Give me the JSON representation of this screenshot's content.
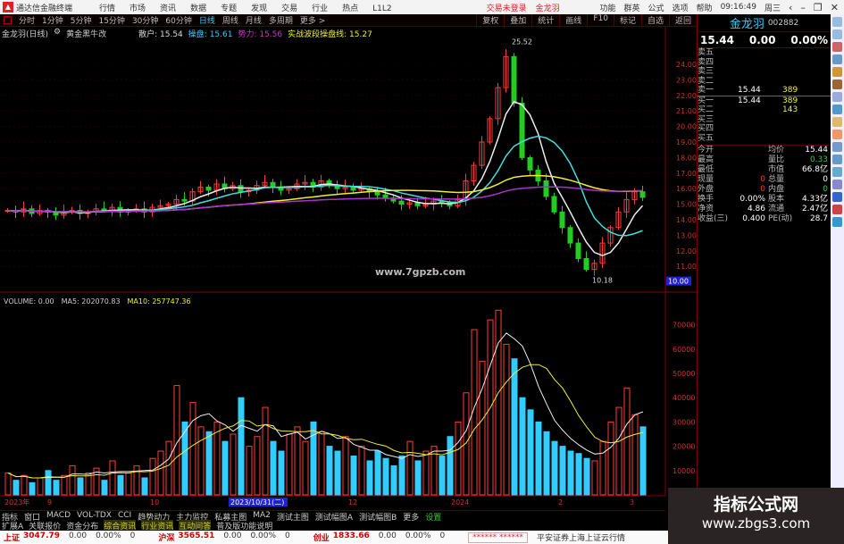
{
  "titlebar": {
    "app_title": "通达信金融终端",
    "menu": [
      "行情",
      "市场",
      "资讯",
      "数据",
      "专题",
      "发现",
      "交易",
      "行业",
      "热点",
      "L1L2"
    ],
    "trade_login": "交易未登录",
    "user": "金龙羽",
    "right": [
      "功能",
      "群英",
      "公式",
      "选项",
      "帮助"
    ],
    "time": "09:16:49",
    "weekday": "周三"
  },
  "periodbar": {
    "items": [
      "分时",
      "1分钟",
      "5分钟",
      "15分钟",
      "30分钟",
      "60分钟",
      "日线",
      "周线",
      "月线",
      "多周期",
      "更多 >"
    ],
    "active": "日线",
    "tools": [
      "复权",
      "叠加",
      "统计",
      "画线",
      "F10",
      "标记",
      "自选",
      "返回"
    ]
  },
  "infoline": {
    "stock": "金龙羽(日线)",
    "indicator": "黄金黑牛改",
    "items": [
      {
        "label": "散户: 15.54",
        "color": "#ddd"
      },
      {
        "label": "操盘: 15.61",
        "color": "#3cf"
      },
      {
        "label": "势力: 15.56",
        "color": "#c3c"
      },
      {
        "label": "实战波段操盘线: 15.27",
        "color": "#ee3"
      }
    ]
  },
  "chart_data": {
    "type": "candlestick",
    "price_axis": {
      "ticks": [
        "24.00",
        "23.00",
        "22.00",
        "21.00",
        "20.00",
        "19.00",
        "18.00",
        "17.00",
        "16.00",
        "15.00",
        "14.00",
        "13.00",
        "12.00",
        "11.00"
      ],
      "current_label": "10.00"
    },
    "volume_axis": {
      "ticks": [
        "70000",
        "60000",
        "50000",
        "40000",
        "30000",
        "20000",
        "10000"
      ]
    },
    "closes": [
      14.6,
      14.5,
      14.7,
      14.4,
      14.6,
      14.5,
      14.3,
      14.5,
      14.6,
      14.4,
      14.5,
      14.7,
      14.6,
      14.8,
      14.5,
      14.6,
      14.7,
      14.5,
      14.8,
      14.9,
      15.0,
      15.3,
      15.2,
      15.8,
      16.1,
      15.9,
      16.3,
      16.0,
      16.2,
      15.8,
      15.9,
      16.2,
      16.4,
      16.1,
      15.9,
      16.0,
      16.3,
      16.4,
      16.1,
      16.5,
      16.2,
      16.0,
      16.1,
      15.9,
      16.0,
      15.8,
      15.6,
      15.4,
      15.2,
      15.0,
      15.1,
      14.9,
      15.0,
      15.2,
      15.1,
      14.9,
      15.3,
      16.5,
      17.5,
      19.0,
      20.5,
      22.5,
      24.5,
      21.5,
      18.0,
      17.2,
      16.5,
      15.5,
      14.5,
      13.5,
      12.5,
      11.5,
      10.8,
      11.2,
      12.5,
      13.5,
      14.5,
      15.3,
      15.8,
      15.44
    ],
    "volumes": [
      9000,
      6000,
      8000,
      5000,
      7000,
      10000,
      6000,
      8000,
      12000,
      7000,
      9000,
      11000,
      6000,
      14000,
      8000,
      9000,
      12000,
      7000,
      15000,
      18000,
      22000,
      45000,
      30000,
      38000,
      28000,
      26000,
      30000,
      22000,
      25000,
      40000,
      20000,
      24000,
      36000,
      22000,
      18000,
      25000,
      28000,
      22000,
      30000,
      26000,
      20000,
      18000,
      24000,
      16000,
      20000,
      14000,
      18000,
      15000,
      12000,
      16000,
      22000,
      14000,
      18000,
      20000,
      16000,
      24000,
      30000,
      42000,
      68000,
      55000,
      72000,
      76000,
      62000,
      56000,
      40000,
      35000,
      30000,
      26000,
      22000,
      20000,
      18000,
      17000,
      15000,
      14000,
      22000,
      30000,
      36000,
      44000,
      33000,
      28000
    ],
    "annotations": {
      "high": "25.52",
      "low": "10.18"
    },
    "volume_legend": {
      "label": "VOLUME: 0.00",
      "ma5": "MA5: 202070.83",
      "ma10": "MA10: 257747.36"
    },
    "x_labels": [
      "2023年",
      "9",
      "10",
      "2023/10/31(二)",
      "12",
      "2024",
      "2",
      "3"
    ],
    "colors": {
      "up": "#ff3c3c",
      "down": "#3cf",
      "down_candle": "#2c2",
      "ma_white": "#eee",
      "ma_cyan": "#4dd",
      "ma_yellow": "#ee3",
      "ma_purple": "#a3c"
    }
  },
  "site_watermark": "www.7gpzb.com",
  "right_panel": {
    "name": "金龙羽",
    "code": "002882",
    "price": "15.44",
    "change": "0.00",
    "pct": "0.00%",
    "asks": [
      {
        "l": "卖五",
        "p": "",
        "v": ""
      },
      {
        "l": "卖四",
        "p": "",
        "v": ""
      },
      {
        "l": "卖三",
        "p": "",
        "v": ""
      },
      {
        "l": "卖二",
        "p": "",
        "v": ""
      },
      {
        "l": "卖一",
        "p": "15.44",
        "v": "389"
      }
    ],
    "bids": [
      {
        "l": "买一",
        "p": "15.44",
        "v": "389"
      },
      {
        "l": "买二",
        "p": "",
        "v": "143"
      },
      {
        "l": "买三",
        "p": "",
        "v": ""
      },
      {
        "l": "买四",
        "p": "",
        "v": ""
      },
      {
        "l": "买五",
        "p": "",
        "v": ""
      }
    ],
    "stats": [
      [
        "今开",
        "",
        "均价",
        "15.44"
      ],
      [
        "最高",
        "",
        "量比",
        "0.33"
      ],
      [
        "最低",
        "",
        "市值",
        "66.8亿"
      ],
      [
        "现量",
        "0",
        "总量",
        "0"
      ],
      [
        "外盘",
        "0",
        "内盘",
        "0"
      ],
      [
        "换手",
        "0.00%",
        "股本",
        "4.33亿"
      ],
      [
        "净资",
        "4.86",
        "流通",
        "2.47亿"
      ],
      [
        "收益(三)",
        "0.400",
        "PE(动)",
        "28.7"
      ]
    ]
  },
  "tabs1": [
    "指标",
    "窗口",
    "MACD",
    "VOL-TDX",
    "CCI",
    "趋势动力",
    "主力监控",
    "私募主图",
    "MA2",
    "测试主图",
    "测试幅图A",
    "测试幅图B",
    "更多",
    "设置"
  ],
  "tabs2": [
    "扩展A",
    "关联报价",
    "资金分布",
    "综合资讯",
    "行业资讯",
    "互动问答",
    "普及版功能说明"
  ],
  "status": [
    {
      "name": "上证",
      "val": "3047.79",
      "chg": "0.00",
      "pct": "0.00%",
      "vol": "0"
    },
    {
      "name": "沪深",
      "val": "3565.51",
      "chg": "0.00",
      "pct": "0.00%",
      "vol": "0"
    },
    {
      "name": "创业",
      "val": "1833.66",
      "chg": "0.00",
      "pct": "0.00%",
      "vol": "0"
    }
  ],
  "status_stars": "****** ******",
  "status_server": "平安证券上海上证云行情",
  "watermark": {
    "title": "指标公式网",
    "url": "www.zbgs3.com"
  }
}
